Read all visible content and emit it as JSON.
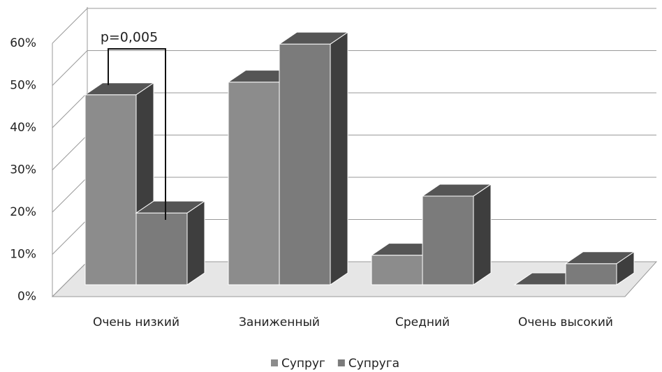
{
  "chart_data": {
    "type": "bar3d",
    "categories": [
      "Очень низкий",
      "Заниженный",
      "Средний",
      "Очень высокий"
    ],
    "series": [
      {
        "name": "Супруг",
        "color": "#8c8c8c",
        "values": [
          45,
          48,
          7,
          0
        ]
      },
      {
        "name": "Супруга",
        "color": "#7b7b7b",
        "values": [
          17,
          57,
          21,
          5
        ]
      }
    ],
    "ylim": [
      0,
      60
    ],
    "yticks": [
      {
        "value": 0,
        "label": "0%"
      },
      {
        "value": 10,
        "label": "10%"
      },
      {
        "value": 20,
        "label": "20%"
      },
      {
        "value": 30,
        "label": "30%"
      },
      {
        "value": 40,
        "label": "40%"
      },
      {
        "value": 50,
        "label": "50%"
      },
      {
        "value": 60,
        "label": "60%"
      }
    ],
    "grid": true,
    "annotation": "p=0,005",
    "legend": "bottom"
  }
}
